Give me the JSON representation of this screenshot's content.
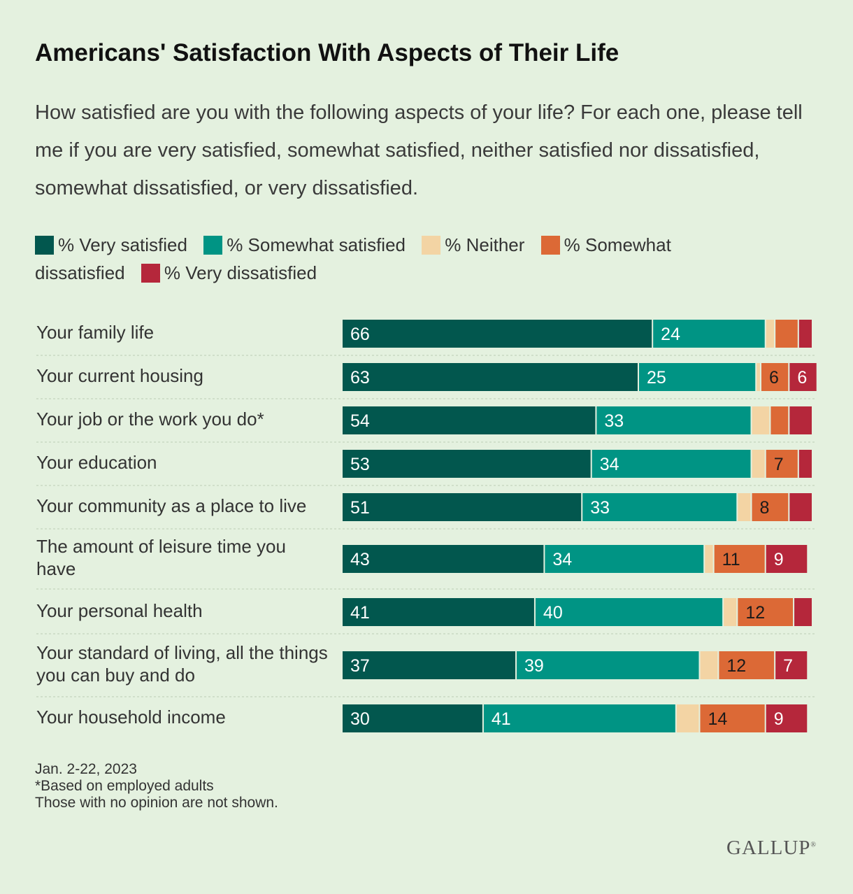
{
  "title": "Americans' Satisfaction With Aspects of Their Life",
  "subtitle": "How satisfied are you with the following aspects of your life? For each one, please tell me if you are very satisfied, somewhat satisfied, neither satisfied nor dissatisfied, somewhat dissatisfied, or very dissatisfied.",
  "colors": {
    "very_satisfied": "#02574e",
    "somewhat_satisfied": "#009484",
    "neither": "#f3d4a4",
    "somewhat_dissatisfied": "#dc6936",
    "very_dissatisfied": "#b5273b"
  },
  "legend": [
    {
      "label": "% Very satisfied",
      "color_key": "very_satisfied"
    },
    {
      "label": "% Somewhat satisfied",
      "color_key": "somewhat_satisfied"
    },
    {
      "label": "% Neither",
      "color_key": "neither"
    },
    {
      "label": "% Somewhat dissatisfied",
      "color_key": "somewhat_dissatisfied"
    },
    {
      "label": "% Very dissatisfied",
      "color_key": "very_dissatisfied"
    }
  ],
  "chart_data": {
    "type": "bar",
    "orientation": "horizontal",
    "stacked": true,
    "xlim": [
      0,
      100
    ],
    "categories": [
      "Your family life",
      "Your current housing",
      "Your job or the work you do*",
      "Your education",
      "Your community as a place to live",
      "The amount of leisure time you have",
      "Your personal health",
      "Your standard of living, all the things you can buy and do",
      "Your household income"
    ],
    "series": [
      {
        "name": "% Very satisfied",
        "color_key": "very_satisfied",
        "values": [
          66,
          63,
          54,
          53,
          51,
          43,
          41,
          37,
          30
        ],
        "shown_labels": [
          true,
          true,
          true,
          true,
          true,
          true,
          true,
          true,
          true
        ]
      },
      {
        "name": "% Somewhat satisfied",
        "color_key": "somewhat_satisfied",
        "values": [
          24,
          25,
          33,
          34,
          33,
          34,
          40,
          39,
          41
        ],
        "shown_labels": [
          true,
          true,
          true,
          true,
          true,
          true,
          true,
          true,
          true
        ]
      },
      {
        "name": "% Neither",
        "color_key": "neither",
        "values": [
          2,
          1,
          4,
          3,
          3,
          2,
          3,
          4,
          5
        ],
        "shown_labels": [
          false,
          false,
          false,
          false,
          false,
          false,
          false,
          false,
          false
        ]
      },
      {
        "name": "% Somewhat dissatisfied",
        "color_key": "somewhat_dissatisfied",
        "values": [
          5,
          6,
          4,
          7,
          8,
          11,
          12,
          12,
          14
        ],
        "shown_labels": [
          false,
          true,
          false,
          true,
          true,
          true,
          true,
          true,
          true
        ]
      },
      {
        "name": "% Very dissatisfied",
        "color_key": "very_dissatisfied",
        "values": [
          3,
          6,
          5,
          3,
          5,
          9,
          4,
          7,
          9
        ],
        "shown_labels": [
          false,
          true,
          false,
          false,
          false,
          true,
          false,
          true,
          true
        ]
      }
    ]
  },
  "footer": {
    "date": "Jan. 2-22, 2023",
    "note1": "*Based on employed adults",
    "note2": "Those with no opinion are not shown."
  },
  "brand": "GALLUP"
}
